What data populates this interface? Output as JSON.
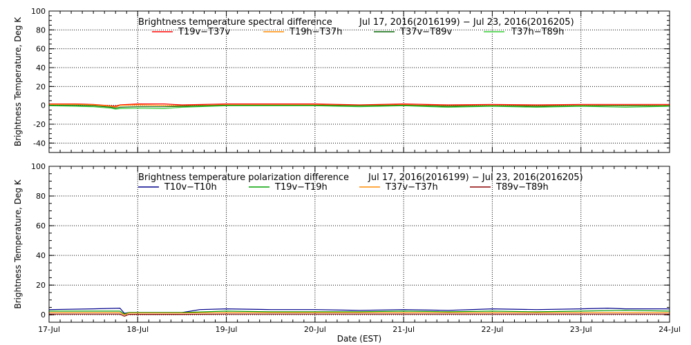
{
  "chart_data": [
    {
      "type": "line",
      "title": "Brightness temperature spectral difference",
      "date_range": "Jul 17, 2016(2016199) − Jul 23, 2016(2016205)",
      "ylabel": "Brightness Temperature, Deg K",
      "ylim": [
        -50,
        100
      ],
      "yticks": [
        -40,
        -20,
        0,
        20,
        40,
        60,
        80,
        100
      ],
      "xlim": [
        "2016-07-17",
        "2016-07-24"
      ],
      "grid": true,
      "legend": "top",
      "series": [
        {
          "name": "T19v−T37v",
          "color": "#ff0000",
          "x": [
            0,
            0.3,
            0.5,
            0.7,
            0.75,
            0.8,
            1.0,
            1.3,
            1.5,
            2.0,
            2.5,
            3.0,
            3.5,
            4.0,
            4.5,
            5.0,
            5.5,
            6.0,
            6.5,
            7.0
          ],
          "y": [
            1.5,
            1.5,
            1,
            -0.5,
            -1,
            0.5,
            1.5,
            1.5,
            0.5,
            1.5,
            1.5,
            1.5,
            0.5,
            1.5,
            0.5,
            1,
            0.5,
            1,
            1,
            1
          ]
        },
        {
          "name": "T19h−T37h",
          "color": "#ff8c00",
          "x": [
            0,
            0.3,
            0.5,
            0.7,
            0.75,
            0.8,
            1.0,
            1.3,
            1.5,
            2.0,
            2.5,
            3.0,
            3.5,
            4.0,
            4.5,
            5.0,
            5.5,
            6.0,
            6.5,
            7.0
          ],
          "y": [
            1,
            1,
            0.5,
            -1,
            -2,
            0,
            0.5,
            0,
            -0.5,
            0.5,
            0.5,
            0.5,
            0,
            0.5,
            -0.5,
            0,
            -0.5,
            0,
            0,
            0
          ]
        },
        {
          "name": "T37v−T89v",
          "color": "#006400",
          "x": [
            0,
            0.3,
            0.5,
            0.7,
            0.75,
            0.8,
            1.0,
            1.3,
            1.5,
            2.0,
            2.5,
            3.0,
            3.5,
            4.0,
            4.5,
            5.0,
            5.5,
            6.0,
            6.5,
            7.0
          ],
          "y": [
            0,
            0,
            -0.5,
            -2,
            -3,
            -2,
            -1.5,
            -1.5,
            -1,
            0,
            0,
            0,
            -0.5,
            0,
            -1,
            -0.5,
            -1,
            -0.5,
            -0.5,
            -0.5
          ]
        },
        {
          "name": "T37h−T89h",
          "color": "#32cd32",
          "x": [
            0,
            0.3,
            0.5,
            0.7,
            0.75,
            0.8,
            1.0,
            1.3,
            1.5,
            2.0,
            2.5,
            3.0,
            3.5,
            4.0,
            4.5,
            5.0,
            5.5,
            6.0,
            6.5,
            7.0
          ],
          "y": [
            -0.5,
            -1,
            -1.5,
            -3,
            -4,
            -3.5,
            -3,
            -3.5,
            -2,
            -0.5,
            -0.5,
            -0.5,
            -1.5,
            -0.5,
            -2,
            -1,
            -2,
            -1,
            -2,
            -1
          ]
        }
      ]
    },
    {
      "type": "line",
      "title": "Brightness temperature polarization difference",
      "date_range": "Jul 17, 2016(2016199) − Jul 23, 2016(2016205)",
      "ylabel": "Brightness Temperature, Deg K",
      "xlabel": "Date (EST)",
      "ylim": [
        -5,
        100
      ],
      "yticks": [
        0,
        20,
        40,
        60,
        80,
        100
      ],
      "xlim": [
        "2016-07-17",
        "2016-07-24"
      ],
      "xticks": [
        "17-Jul",
        "18-Jul",
        "19-Jul",
        "20-Jul",
        "21-Jul",
        "22-Jul",
        "23-Jul",
        "24-Jul"
      ],
      "grid": true,
      "legend": "top",
      "series": [
        {
          "name": "T10v−T10h",
          "color": "#00008b",
          "x": [
            0,
            0.5,
            0.8,
            0.85,
            0.9,
            1.5,
            1.7,
            2.0,
            2.5,
            3.0,
            3.5,
            4.0,
            4.5,
            5.0,
            5.5,
            6.0,
            6.3,
            6.5,
            7.0
          ],
          "y": [
            3.5,
            4,
            4.5,
            1,
            1.5,
            1.5,
            3.5,
            4,
            3.5,
            3.5,
            3,
            3.5,
            3,
            4,
            3.5,
            4,
            4.5,
            4,
            4
          ]
        },
        {
          "name": "T19v−T19h",
          "color": "#00a000",
          "x": [
            0,
            0.5,
            0.8,
            0.85,
            0.9,
            1.5,
            2.0,
            2.5,
            3.0,
            3.5,
            4.0,
            4.5,
            5.0,
            5.5,
            6.0,
            6.5,
            7.0
          ],
          "y": [
            2.5,
            2.5,
            2.5,
            0.5,
            1.5,
            1.5,
            2.5,
            2,
            2,
            2,
            2.5,
            2,
            2.5,
            2,
            2.5,
            3,
            2.5
          ]
        },
        {
          "name": "T37v−T37h",
          "color": "#ff8c00",
          "x": [
            0,
            0.8,
            0.85,
            0.9,
            1.5,
            2.0,
            3.0,
            4.0,
            5.0,
            6.0,
            7.0
          ],
          "y": [
            1.5,
            1.5,
            0,
            1.2,
            1.2,
            1.5,
            1.5,
            1.5,
            1.5,
            1.5,
            1.5
          ]
        },
        {
          "name": "T89v−T89h",
          "color": "#8b0000",
          "x": [
            0,
            0.8,
            0.85,
            0.9,
            1.5,
            2.0,
            3.0,
            4.0,
            5.0,
            6.0,
            7.0
          ],
          "y": [
            0.5,
            0.5,
            -1,
            0.3,
            0.3,
            0.5,
            0.5,
            0.5,
            0.5,
            0.5,
            0.5
          ]
        }
      ]
    }
  ]
}
